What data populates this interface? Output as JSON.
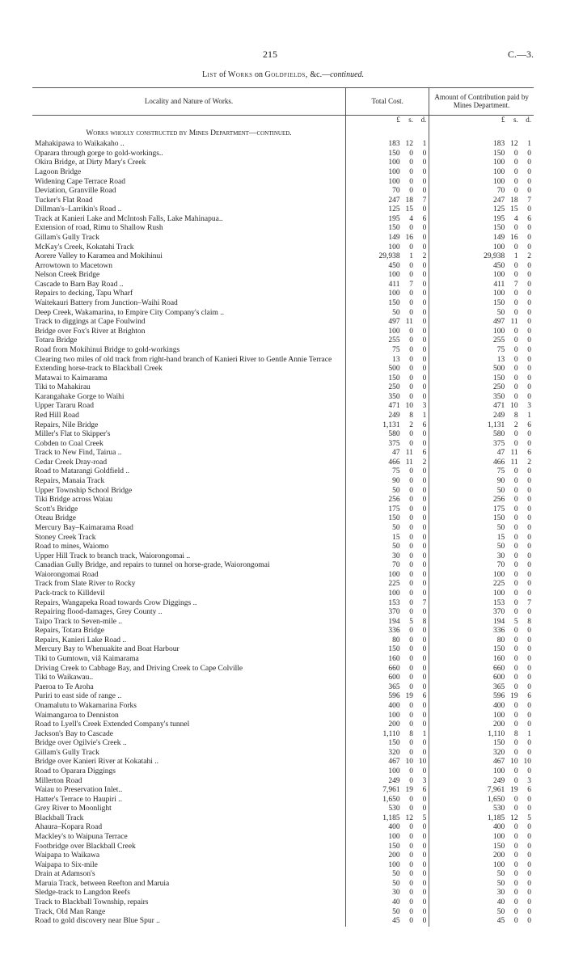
{
  "header": {
    "page_number": "215",
    "doc_number": "C.—3."
  },
  "title": {
    "prefix": "List",
    "mid": "of",
    "w": "Works",
    "on": "on",
    "g": "Goldfields,",
    "etc": "&c.—",
    "cont": "continued."
  },
  "columns": {
    "locality": "Locality and Nature of Works.",
    "total": "Total Cost.",
    "contrib": "Amount of Contribution paid by Mines Department."
  },
  "units": {
    "L": "£",
    "s": "s.",
    "d": "d."
  },
  "section": "Works wholly constructed by Mines Department—continued.",
  "rows": [
    {
      "l": "Mahakipawa to Waikakaho ..",
      "t": [
        "183",
        "12",
        "1"
      ],
      "c": [
        "183",
        "12",
        "1"
      ]
    },
    {
      "l": "Oparara through gorge to gold-workings..",
      "t": [
        "150",
        "0",
        "0"
      ],
      "c": [
        "150",
        "0",
        "0"
      ]
    },
    {
      "l": "Okira Bridge, at Dirty Mary's Creek",
      "t": [
        "100",
        "0",
        "0"
      ],
      "c": [
        "100",
        "0",
        "0"
      ]
    },
    {
      "l": "Lagoon Bridge",
      "t": [
        "100",
        "0",
        "0"
      ],
      "c": [
        "100",
        "0",
        "0"
      ]
    },
    {
      "l": "Widening Cape Terrace Road",
      "t": [
        "100",
        "0",
        "0"
      ],
      "c": [
        "100",
        "0",
        "0"
      ]
    },
    {
      "l": "Deviation, Granville Road",
      "t": [
        "70",
        "0",
        "0"
      ],
      "c": [
        "70",
        "0",
        "0"
      ]
    },
    {
      "l": "Tucker's Flat Road",
      "t": [
        "247",
        "18",
        "7"
      ],
      "c": [
        "247",
        "18",
        "7"
      ]
    },
    {
      "l": "Dillman's–Larrikin's Road ..",
      "t": [
        "125",
        "15",
        "0"
      ],
      "c": [
        "125",
        "15",
        "0"
      ]
    },
    {
      "l": "Track at Kanieri Lake and McIntosh Falls, Lake Mahinapua..",
      "t": [
        "195",
        "4",
        "6"
      ],
      "c": [
        "195",
        "4",
        "6"
      ]
    },
    {
      "l": "Extension of road, Rimu to Shallow Rush",
      "t": [
        "150",
        "0",
        "0"
      ],
      "c": [
        "150",
        "0",
        "0"
      ]
    },
    {
      "l": "Gillam's Gully Track",
      "t": [
        "149",
        "16",
        "0"
      ],
      "c": [
        "149",
        "16",
        "0"
      ]
    },
    {
      "l": "McKay's Creek, Kokatahi Track",
      "t": [
        "100",
        "0",
        "0"
      ],
      "c": [
        "100",
        "0",
        "0"
      ]
    },
    {
      "l": "Aorere Valley to Karamea and Mokihinui",
      "t": [
        "29,938",
        "1",
        "2"
      ],
      "c": [
        "29,938",
        "1",
        "2"
      ]
    },
    {
      "l": "Arrowtown to Macetown",
      "t": [
        "450",
        "0",
        "0"
      ],
      "c": [
        "450",
        "0",
        "0"
      ]
    },
    {
      "l": "Nelson Creek Bridge",
      "t": [
        "100",
        "0",
        "0"
      ],
      "c": [
        "100",
        "0",
        "0"
      ]
    },
    {
      "l": "Cascade to Barn Bay Road ..",
      "t": [
        "411",
        "7",
        "0"
      ],
      "c": [
        "411",
        "7",
        "0"
      ]
    },
    {
      "l": "Repairs to decking, Tapu Wharf",
      "t": [
        "100",
        "0",
        "0"
      ],
      "c": [
        "100",
        "0",
        "0"
      ]
    },
    {
      "l": "Waitekauri Battery from Junction–Waihi Road",
      "t": [
        "150",
        "0",
        "0"
      ],
      "c": [
        "150",
        "0",
        "0"
      ]
    },
    {
      "l": "Deep Creek, Wakamarina, to Empire City Company's claim ..",
      "t": [
        "50",
        "0",
        "0"
      ],
      "c": [
        "50",
        "0",
        "0"
      ]
    },
    {
      "l": "Track to diggings at Cape Foulwind",
      "t": [
        "497",
        "11",
        "0"
      ],
      "c": [
        "497",
        "11",
        "0"
      ]
    },
    {
      "l": "Bridge over Fox's River at Brighton",
      "t": [
        "100",
        "0",
        "0"
      ],
      "c": [
        "100",
        "0",
        "0"
      ]
    },
    {
      "l": "Totara Bridge",
      "t": [
        "255",
        "0",
        "0"
      ],
      "c": [
        "255",
        "0",
        "0"
      ]
    },
    {
      "l": "Road from Mokihinui Bridge to gold-workings",
      "t": [
        "75",
        "0",
        "0"
      ],
      "c": [
        "75",
        "0",
        "0"
      ]
    },
    {
      "l": "Clearing two miles of old track from right-hand branch of Kanieri River to Gentle Annie Terrace",
      "t": [
        "13",
        "0",
        "0"
      ],
      "c": [
        "13",
        "0",
        "0"
      ]
    },
    {
      "l": "Extending horse-track to Blackball Creek",
      "t": [
        "500",
        "0",
        "0"
      ],
      "c": [
        "500",
        "0",
        "0"
      ]
    },
    {
      "l": "Matawai to Kaimarama",
      "t": [
        "150",
        "0",
        "0"
      ],
      "c": [
        "150",
        "0",
        "0"
      ]
    },
    {
      "l": "Tiki to Mahakirau",
      "t": [
        "250",
        "0",
        "0"
      ],
      "c": [
        "250",
        "0",
        "0"
      ]
    },
    {
      "l": "Karangahake Gorge to Waihi",
      "t": [
        "350",
        "0",
        "0"
      ],
      "c": [
        "350",
        "0",
        "0"
      ]
    },
    {
      "l": "Upper Tararu Road",
      "t": [
        "471",
        "10",
        "3"
      ],
      "c": [
        "471",
        "10",
        "3"
      ]
    },
    {
      "l": "Red Hill Road",
      "t": [
        "249",
        "8",
        "1"
      ],
      "c": [
        "249",
        "8",
        "1"
      ]
    },
    {
      "l": "Repairs, Nile Bridge",
      "t": [
        "1,131",
        "2",
        "6"
      ],
      "c": [
        "1,131",
        "2",
        "6"
      ]
    },
    {
      "l": "Miller's Flat to Skipper's",
      "t": [
        "580",
        "0",
        "0"
      ],
      "c": [
        "580",
        "0",
        "0"
      ]
    },
    {
      "l": "Cobden to Coal Creek",
      "t": [
        "375",
        "0",
        "0"
      ],
      "c": [
        "375",
        "0",
        "0"
      ]
    },
    {
      "l": "Track to New Find, Tairua ..",
      "t": [
        "47",
        "11",
        "6"
      ],
      "c": [
        "47",
        "11",
        "6"
      ]
    },
    {
      "l": "Cedar Creek Dray-road",
      "t": [
        "466",
        "11",
        "2"
      ],
      "c": [
        "466",
        "11",
        "2"
      ]
    },
    {
      "l": "Road to Matarangi Goldfield ..",
      "t": [
        "75",
        "0",
        "0"
      ],
      "c": [
        "75",
        "0",
        "0"
      ]
    },
    {
      "l": "Repairs, Manaia Track",
      "t": [
        "90",
        "0",
        "0"
      ],
      "c": [
        "90",
        "0",
        "0"
      ]
    },
    {
      "l": "Upper Township School Bridge",
      "t": [
        "50",
        "0",
        "0"
      ],
      "c": [
        "50",
        "0",
        "0"
      ]
    },
    {
      "l": "Tiki Bridge across Waiau",
      "t": [
        "256",
        "0",
        "0"
      ],
      "c": [
        "256",
        "0",
        "0"
      ]
    },
    {
      "l": "Scott's Bridge",
      "t": [
        "175",
        "0",
        "0"
      ],
      "c": [
        "175",
        "0",
        "0"
      ]
    },
    {
      "l": "Oteau Bridge",
      "t": [
        "150",
        "0",
        "0"
      ],
      "c": [
        "150",
        "0",
        "0"
      ]
    },
    {
      "l": "Mercury Bay–Kaimarama Road",
      "t": [
        "50",
        "0",
        "0"
      ],
      "c": [
        "50",
        "0",
        "0"
      ]
    },
    {
      "l": "Stoney Creek Track",
      "t": [
        "15",
        "0",
        "0"
      ],
      "c": [
        "15",
        "0",
        "0"
      ]
    },
    {
      "l": "Road to mines, Waiomo",
      "t": [
        "50",
        "0",
        "0"
      ],
      "c": [
        "50",
        "0",
        "0"
      ]
    },
    {
      "l": "Upper Hill Track to branch track, Waiorongomai ..",
      "t": [
        "30",
        "0",
        "0"
      ],
      "c": [
        "30",
        "0",
        "0"
      ]
    },
    {
      "l": "Canadian Gully Bridge, and repairs to tunnel on horse-grade, Waiorongomai",
      "t": [
        "70",
        "0",
        "0"
      ],
      "c": [
        "70",
        "0",
        "0"
      ]
    },
    {
      "l": "Waiorongomai Road",
      "t": [
        "100",
        "0",
        "0"
      ],
      "c": [
        "100",
        "0",
        "0"
      ]
    },
    {
      "l": "Track from Slate River to Rocky",
      "t": [
        "225",
        "0",
        "0"
      ],
      "c": [
        "225",
        "0",
        "0"
      ]
    },
    {
      "l": "Pack-track to Killdevil",
      "t": [
        "100",
        "0",
        "0"
      ],
      "c": [
        "100",
        "0",
        "0"
      ]
    },
    {
      "l": "Repairs, Wangapeka Road towards Crow Diggings ..",
      "t": [
        "153",
        "0",
        "7"
      ],
      "c": [
        "153",
        "0",
        "7"
      ]
    },
    {
      "l": "Repairing flood-damages, Grey County ..",
      "t": [
        "370",
        "0",
        "0"
      ],
      "c": [
        "370",
        "0",
        "0"
      ]
    },
    {
      "l": "Taipo Track to Seven-mile ..",
      "t": [
        "194",
        "5",
        "8"
      ],
      "c": [
        "194",
        "5",
        "8"
      ]
    },
    {
      "l": "Repairs, Totara Bridge",
      "t": [
        "336",
        "0",
        "0"
      ],
      "c": [
        "336",
        "0",
        "0"
      ]
    },
    {
      "l": "Repairs, Kanieri Lake Road ..",
      "t": [
        "80",
        "0",
        "0"
      ],
      "c": [
        "80",
        "0",
        "0"
      ]
    },
    {
      "l": "Mercury Bay to Whenuakite and Boat Harbour",
      "t": [
        "150",
        "0",
        "0"
      ],
      "c": [
        "150",
        "0",
        "0"
      ]
    },
    {
      "l": "Tiki to Gumtown, viâ Kaimarama",
      "t": [
        "160",
        "0",
        "0"
      ],
      "c": [
        "160",
        "0",
        "0"
      ]
    },
    {
      "l": "Driving Creek to Cabbage Bay, and Driving Creek to Cape Colville",
      "t": [
        "660",
        "0",
        "0"
      ],
      "c": [
        "660",
        "0",
        "0"
      ]
    },
    {
      "l": "Tiki to Waikawau..",
      "t": [
        "600",
        "0",
        "0"
      ],
      "c": [
        "600",
        "0",
        "0"
      ]
    },
    {
      "l": "Paeroa to Te Aroha",
      "t": [
        "365",
        "0",
        "0"
      ],
      "c": [
        "365",
        "0",
        "0"
      ]
    },
    {
      "l": "Puriri to east side of range ..",
      "t": [
        "596",
        "19",
        "6"
      ],
      "c": [
        "596",
        "19",
        "6"
      ]
    },
    {
      "l": "Onamalutu to Wakamarina Forks",
      "t": [
        "400",
        "0",
        "0"
      ],
      "c": [
        "400",
        "0",
        "0"
      ]
    },
    {
      "l": "Waimangaroa to Denniston",
      "t": [
        "100",
        "0",
        "0"
      ],
      "c": [
        "100",
        "0",
        "0"
      ]
    },
    {
      "l": "Road to Lyell's Creek Extended Company's tunnel",
      "t": [
        "200",
        "0",
        "0"
      ],
      "c": [
        "200",
        "0",
        "0"
      ]
    },
    {
      "l": "Jackson's Bay to Cascade",
      "t": [
        "1,110",
        "8",
        "1"
      ],
      "c": [
        "1,110",
        "8",
        "1"
      ]
    },
    {
      "l": "Bridge over Ogilvie's Creek ..",
      "t": [
        "150",
        "0",
        "0"
      ],
      "c": [
        "150",
        "0",
        "0"
      ]
    },
    {
      "l": "Gillam's Gully Track",
      "t": [
        "320",
        "0",
        "0"
      ],
      "c": [
        "320",
        "0",
        "0"
      ]
    },
    {
      "l": "Bridge over Kanieri River at Kokatahi ..",
      "t": [
        "467",
        "10",
        "10"
      ],
      "c": [
        "467",
        "10",
        "10"
      ]
    },
    {
      "l": "Road to Oparara Diggings",
      "t": [
        "100",
        "0",
        "0"
      ],
      "c": [
        "100",
        "0",
        "0"
      ]
    },
    {
      "l": "Millerton Road",
      "t": [
        "249",
        "0",
        "3"
      ],
      "c": [
        "249",
        "0",
        "3"
      ]
    },
    {
      "l": "Waiau to Preservation Inlet..",
      "t": [
        "7,961",
        "19",
        "6"
      ],
      "c": [
        "7,961",
        "19",
        "6"
      ]
    },
    {
      "l": "Hatter's Terrace to Haupiri ..",
      "t": [
        "1,650",
        "0",
        "0"
      ],
      "c": [
        "1,650",
        "0",
        "0"
      ]
    },
    {
      "l": "Grey River to Moonlight",
      "t": [
        "530",
        "0",
        "0"
      ],
      "c": [
        "530",
        "0",
        "0"
      ]
    },
    {
      "l": "Blackball Track",
      "t": [
        "1,185",
        "12",
        "5"
      ],
      "c": [
        "1,185",
        "12",
        "5"
      ]
    },
    {
      "l": "Ahaura–Kopara Road",
      "t": [
        "400",
        "0",
        "0"
      ],
      "c": [
        "400",
        "0",
        "0"
      ]
    },
    {
      "l": "Mackley's to Waipuna Terrace",
      "t": [
        "100",
        "0",
        "0"
      ],
      "c": [
        "100",
        "0",
        "0"
      ]
    },
    {
      "l": "Footbridge over Blackball Creek",
      "t": [
        "150",
        "0",
        "0"
      ],
      "c": [
        "150",
        "0",
        "0"
      ]
    },
    {
      "l": "Waipapa to Waikawa",
      "t": [
        "200",
        "0",
        "0"
      ],
      "c": [
        "200",
        "0",
        "0"
      ]
    },
    {
      "l": "Waipapa to Six-mile",
      "t": [
        "100",
        "0",
        "0"
      ],
      "c": [
        "100",
        "0",
        "0"
      ]
    },
    {
      "l": "Drain at Adamson's",
      "t": [
        "50",
        "0",
        "0"
      ],
      "c": [
        "50",
        "0",
        "0"
      ]
    },
    {
      "l": "Maruia Track, between Reefton and Maruia",
      "t": [
        "50",
        "0",
        "0"
      ],
      "c": [
        "50",
        "0",
        "0"
      ]
    },
    {
      "l": "Sledge-track to Langdon Reefs",
      "t": [
        "30",
        "0",
        "0"
      ],
      "c": [
        "30",
        "0",
        "0"
      ]
    },
    {
      "l": "Track to Blackball Township, repairs",
      "t": [
        "40",
        "0",
        "0"
      ],
      "c": [
        "40",
        "0",
        "0"
      ]
    },
    {
      "l": "Track, Old Man Range",
      "t": [
        "50",
        "0",
        "0"
      ],
      "c": [
        "50",
        "0",
        "0"
      ]
    },
    {
      "l": "Road to gold discovery near Blue Spur ..",
      "t": [
        "45",
        "0",
        "0"
      ],
      "c": [
        "45",
        "0",
        "0"
      ]
    }
  ]
}
